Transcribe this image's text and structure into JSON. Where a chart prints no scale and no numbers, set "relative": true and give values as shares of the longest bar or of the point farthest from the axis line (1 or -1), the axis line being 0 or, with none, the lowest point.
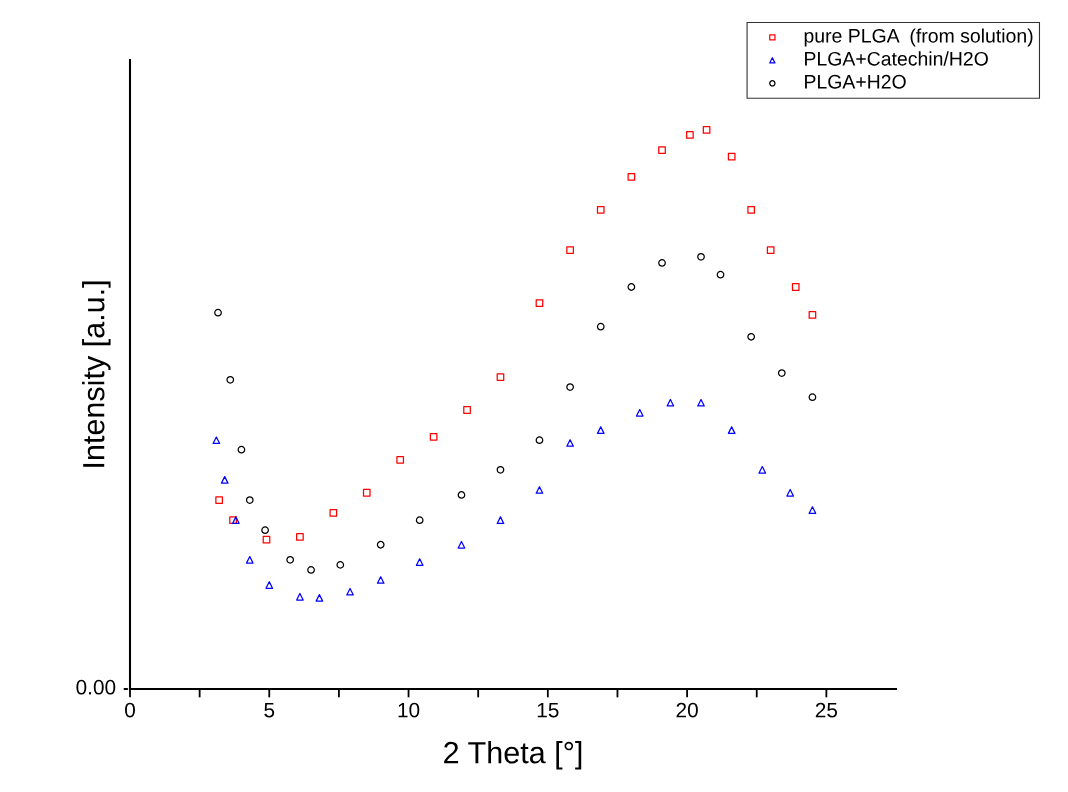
{
  "chart_data": {
    "type": "scatter",
    "relative": true,
    "xlabel": "2 Theta [°]",
    "ylabel": "Intensity [a.u.]",
    "xlim": [
      0,
      27.5
    ],
    "xticks": [
      0,
      {
        "value": 2.5,
        "label": null
      },
      5,
      {
        "value": 7.5,
        "label": null
      },
      10,
      {
        "value": 12.5,
        "label": null
      },
      15,
      {
        "value": 17.5,
        "label": null
      },
      20,
      {
        "value": 22.5,
        "label": null
      },
      25
    ],
    "annotations": [
      "0.00"
    ],
    "legend": "top right",
    "grid": false,
    "series": [
      {
        "name": "pure PLGA  (from solution)",
        "color": "#ff0000",
        "marker": "square",
        "x": [
          3.2,
          3.7,
          4.9,
          6.1,
          7.3,
          8.5,
          9.7,
          10.9,
          12.1,
          13.3,
          14.7,
          15.8,
          16.9,
          18.0,
          19.1,
          20.1,
          20.7,
          21.6,
          22.3,
          23.0,
          23.9,
          24.5
        ],
        "values": [
          0.338,
          0.302,
          0.267,
          0.272,
          0.315,
          0.351,
          0.41,
          0.451,
          0.499,
          0.558,
          0.69,
          0.785,
          0.857,
          0.916,
          0.964,
          0.991,
          1.0,
          0.952,
          0.857,
          0.785,
          0.719,
          0.669
        ]
      },
      {
        "name": "PLGA+Catechin/H2O",
        "color": "#0000ff",
        "marker": "triangle",
        "x": [
          3.1,
          3.4,
          3.8,
          4.3,
          5.0,
          6.1,
          6.8,
          7.9,
          9.0,
          10.4,
          11.9,
          13.3,
          14.7,
          15.8,
          16.9,
          18.3,
          19.4,
          20.5,
          21.6,
          22.7,
          23.7,
          24.5
        ],
        "values": [
          0.445,
          0.374,
          0.302,
          0.231,
          0.186,
          0.165,
          0.163,
          0.174,
          0.195,
          0.227,
          0.258,
          0.302,
          0.356,
          0.44,
          0.463,
          0.494,
          0.512,
          0.512,
          0.463,
          0.392,
          0.351,
          0.32
        ]
      },
      {
        "name": "PLGA+H2O",
        "color": "#000000",
        "marker": "circle",
        "x": [
          3.16,
          3.6,
          4.0,
          4.3,
          4.85,
          5.75,
          6.5,
          7.55,
          9.0,
          10.4,
          11.9,
          13.3,
          14.7,
          15.8,
          16.9,
          18.0,
          19.1,
          20.5,
          21.2,
          22.3,
          23.4,
          24.5
        ],
        "values": [
          0.673,
          0.553,
          0.428,
          0.338,
          0.284,
          0.231,
          0.213,
          0.222,
          0.258,
          0.302,
          0.347,
          0.392,
          0.445,
          0.54,
          0.648,
          0.719,
          0.762,
          0.773,
          0.741,
          0.63,
          0.565,
          0.522
        ]
      }
    ]
  }
}
